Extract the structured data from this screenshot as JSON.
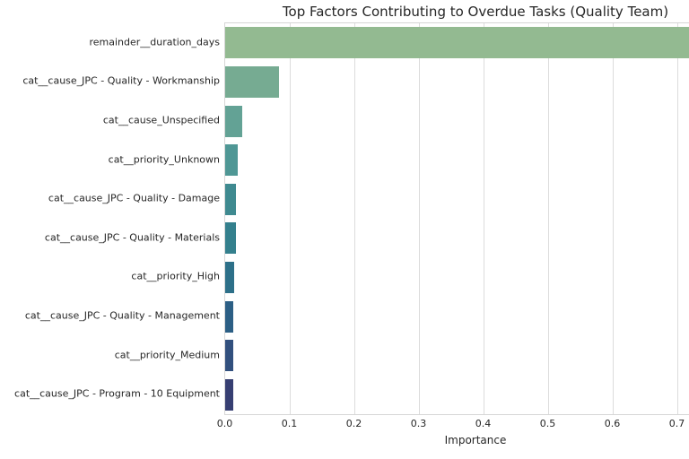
{
  "chart_data": {
    "type": "bar",
    "orientation": "horizontal",
    "title": "Top Factors Contributing to Overdue Tasks (Quality Team)",
    "xlabel": "Importance",
    "ylabel": "",
    "categories": [
      "remainder__duration_days",
      "cat__cause_JPC - Quality - Workmanship",
      "cat__cause_Unspecified",
      "cat__priority_Unknown",
      "cat__cause_JPC - Quality - Damage",
      "cat__cause_JPC - Quality - Materials",
      "cat__priority_High",
      "cat__cause_JPC - Quality - Management",
      "cat__priority_Medium",
      "cat__cause_JPC - Program - 10 Equipment"
    ],
    "values": [
      0.73,
      0.084,
      0.026,
      0.019,
      0.016,
      0.016,
      0.014,
      0.013,
      0.012,
      0.012
    ],
    "bar_colors": [
      "#93ba91",
      "#76ab92",
      "#63a295",
      "#4f9795",
      "#3f8a90",
      "#34808d",
      "#2d7089",
      "#2c5f85",
      "#32507e",
      "#373f72"
    ],
    "x_ticks": [
      "0.0",
      "0.1",
      "0.2",
      "0.3",
      "0.4",
      "0.5",
      "0.6",
      "0.7"
    ],
    "xlim": [
      0,
      0.78
    ],
    "grid": "vertical",
    "legend": "none"
  }
}
